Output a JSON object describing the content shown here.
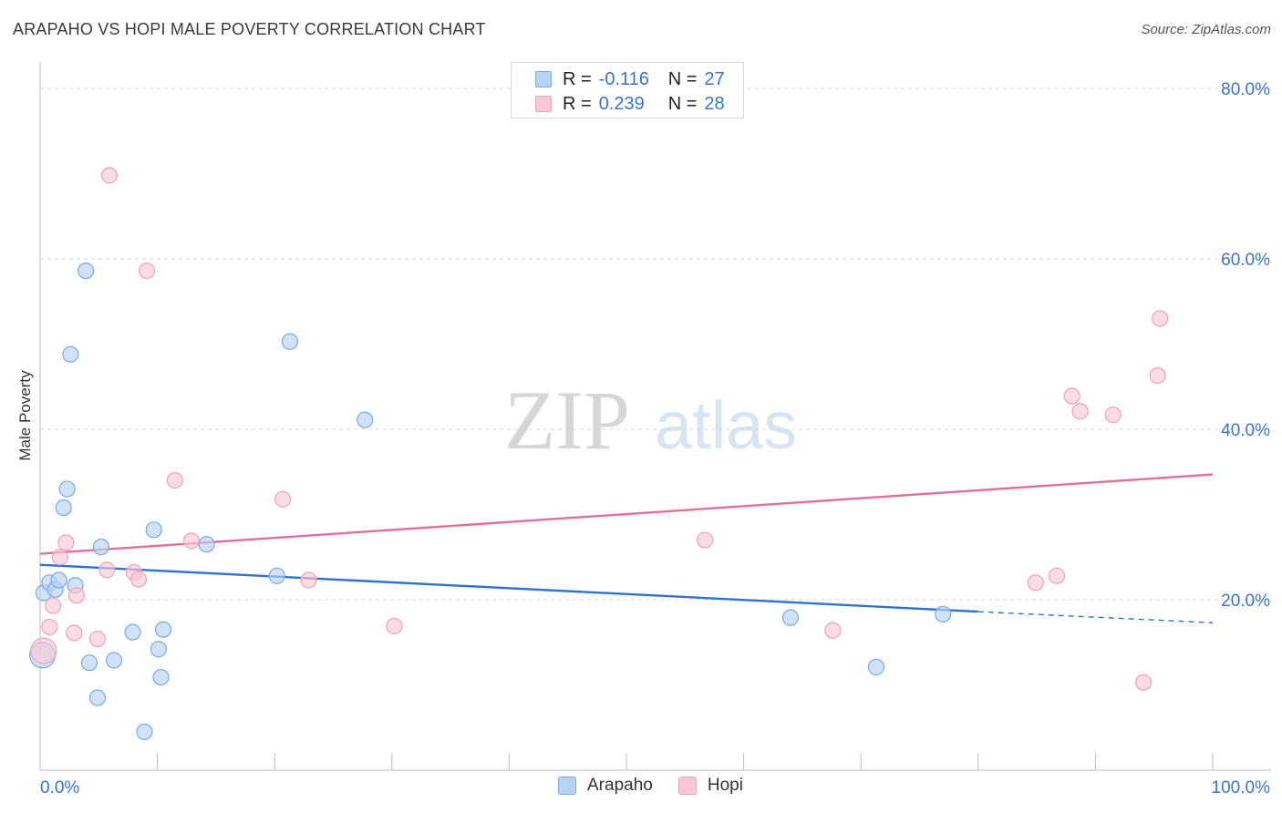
{
  "title": "ARAPAHO VS HOPI MALE POVERTY CORRELATION CHART",
  "source": "Source: ZipAtlas.com",
  "watermark": {
    "zip": "ZIP",
    "atlas": "atlas"
  },
  "legend_top": [
    {
      "r_label": "R =",
      "r_value": "-0.116",
      "n_label": "N =",
      "n_value": "27"
    },
    {
      "r_label": "R =",
      "r_value": "0.239",
      "n_label": "N =",
      "n_value": "28"
    }
  ],
  "legend_bottom": [
    {
      "label": "Arapaho"
    },
    {
      "label": "Hopi"
    }
  ],
  "colors": {
    "arapaho_fill": "#b9d3f4",
    "arapaho_stroke": "#7aa9e3",
    "arapaho_line": "#2f72d0",
    "hopi_fill": "#f9c7d6",
    "hopi_stroke": "#eea2bb",
    "hopi_line": "#e0709a",
    "tick_label": "#3a74c9",
    "grid": "#d8d8d8"
  },
  "chart_data": {
    "type": "scatter",
    "title": "ARAPAHO VS HOPI MALE POVERTY CORRELATION CHART",
    "xlabel": "",
    "ylabel": "Male Poverty",
    "xlim": [
      0,
      100
    ],
    "ylim": [
      0,
      80
    ],
    "x_tick_labels": [
      "0.0%",
      "100.0%"
    ],
    "y_ticks": [
      20,
      40,
      60,
      80
    ],
    "y_tick_labels": [
      "20.0%",
      "40.0%",
      "60.0%",
      "80.0%"
    ],
    "grid": "horizontal dashed",
    "series": [
      {
        "name": "Arapaho",
        "points": [
          [
            0.2,
            13.5
          ],
          [
            0.3,
            20.8
          ],
          [
            0.8,
            22.0
          ],
          [
            1.3,
            21.2
          ],
          [
            1.6,
            22.3
          ],
          [
            2.0,
            30.8
          ],
          [
            2.3,
            33.0
          ],
          [
            2.6,
            48.8
          ],
          [
            3.0,
            21.7
          ],
          [
            3.9,
            58.6
          ],
          [
            4.2,
            12.6
          ],
          [
            4.9,
            8.5
          ],
          [
            5.2,
            26.2
          ],
          [
            6.3,
            12.9
          ],
          [
            7.9,
            16.2
          ],
          [
            8.9,
            4.5
          ],
          [
            9.7,
            28.2
          ],
          [
            10.1,
            14.2
          ],
          [
            10.3,
            10.9
          ],
          [
            10.5,
            16.5
          ],
          [
            14.2,
            26.5
          ],
          [
            20.2,
            22.8
          ],
          [
            21.3,
            50.3
          ],
          [
            27.7,
            41.1
          ],
          [
            64.0,
            17.9
          ],
          [
            71.3,
            12.1
          ],
          [
            77.0,
            18.3
          ]
        ],
        "trend": {
          "x": [
            0,
            80
          ],
          "y": [
            24.1,
            18.6
          ],
          "dashed_extension_to_x": 100,
          "dashed_end_y": 17.3
        }
      },
      {
        "name": "Hopi",
        "points": [
          [
            0.3,
            14.0
          ],
          [
            0.8,
            16.8
          ],
          [
            1.1,
            19.3
          ],
          [
            1.7,
            25.0
          ],
          [
            2.2,
            26.7
          ],
          [
            2.9,
            16.1
          ],
          [
            3.1,
            20.5
          ],
          [
            4.9,
            15.4
          ],
          [
            5.7,
            23.5
          ],
          [
            5.9,
            69.8
          ],
          [
            8.0,
            23.2
          ],
          [
            8.4,
            22.4
          ],
          [
            9.1,
            58.6
          ],
          [
            11.5,
            34.0
          ],
          [
            12.9,
            26.9
          ],
          [
            20.7,
            31.8
          ],
          [
            22.9,
            22.3
          ],
          [
            30.2,
            16.9
          ],
          [
            56.7,
            27.0
          ],
          [
            67.6,
            16.4
          ],
          [
            84.9,
            22.0
          ],
          [
            86.7,
            22.8
          ],
          [
            88.0,
            43.9
          ],
          [
            88.7,
            42.1
          ],
          [
            91.5,
            41.7
          ],
          [
            94.1,
            10.3
          ],
          [
            95.3,
            46.3
          ],
          [
            95.5,
            53.0
          ]
        ],
        "trend": {
          "x": [
            0,
            100
          ],
          "y": [
            25.4,
            34.7
          ]
        }
      }
    ]
  }
}
